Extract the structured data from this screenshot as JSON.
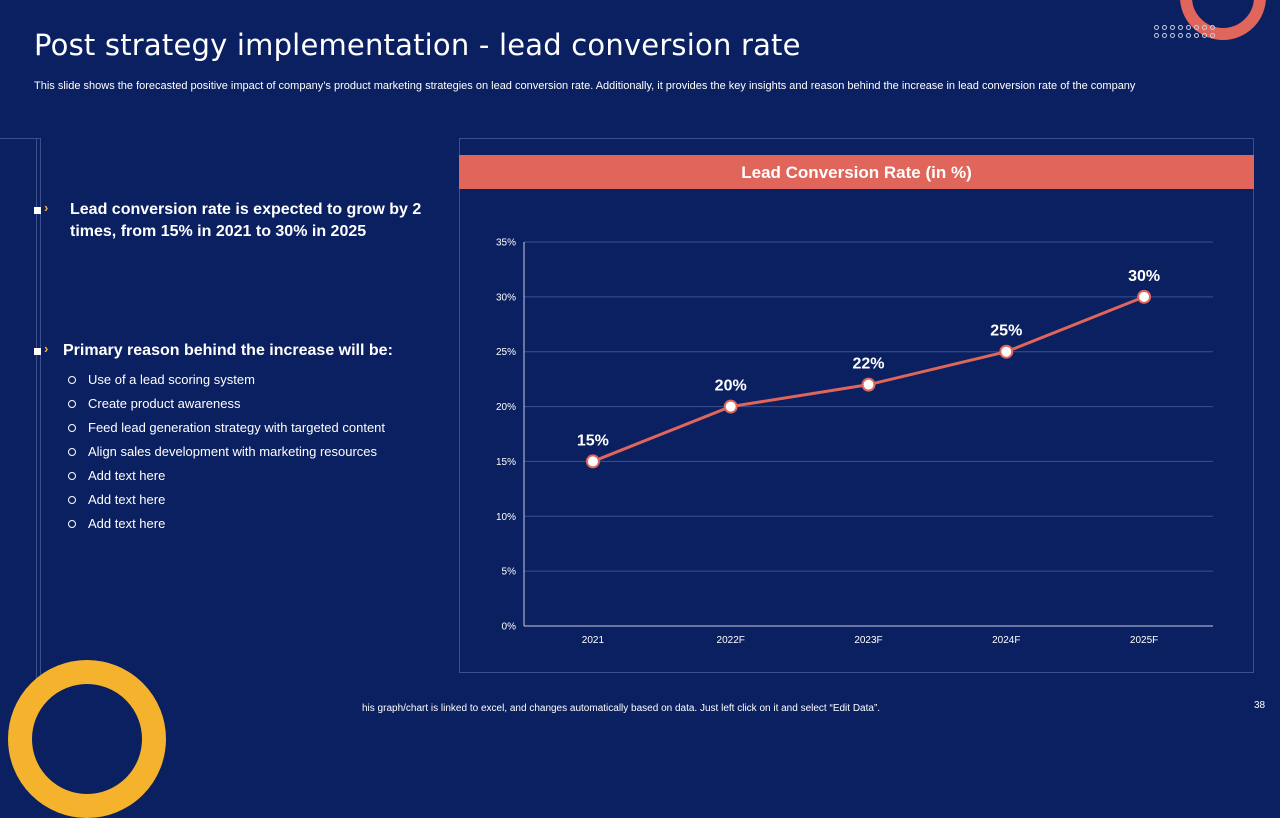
{
  "slide": {
    "title": "Post strategy implementation - lead conversion rate",
    "subtitle": "This slide shows the forecasted positive impact of company’s product marketing strategies on lead conversion rate. Additionally, it provides the key insights and reason behind the increase in lead conversion rate of the company",
    "footnote": "his graph/chart is linked to excel, and changes automatically based on data. Just left click on it and select “Edit Data”.",
    "page_number": "38"
  },
  "insights": {
    "point1": "Lead conversion rate is expected to grow by 2 times, from 15% in 2021 to 30% in 2025",
    "point2": "Primary reason behind the increase will be:",
    "reasons": [
      "Use of a lead scoring system",
      "Create product awareness",
      "Feed lead generation  strategy with targeted content",
      "Align sales development  with marketing resources",
      "Add text here",
      "Add text here",
      "Add text here"
    ]
  },
  "colors": {
    "background": "#0b2060",
    "accent_coral": "#e0655a",
    "accent_yellow": "#f5b22d"
  },
  "chart_data": {
    "type": "line",
    "title": "Lead Conversion Rate (in %)",
    "categories": [
      "2021",
      "2022F",
      "2023F",
      "2024F",
      "2025F"
    ],
    "values": [
      15,
      20,
      22,
      25,
      30
    ],
    "data_labels": [
      "15%",
      "20%",
      "22%",
      "25%",
      "30%"
    ],
    "y_ticks": [
      "0%",
      "5%",
      "10%",
      "15%",
      "20%",
      "25%",
      "30%",
      "35%"
    ],
    "ylim": [
      0,
      35
    ],
    "y_step": 5,
    "grid": true,
    "legend": "none",
    "series_color": "#e0655a"
  }
}
